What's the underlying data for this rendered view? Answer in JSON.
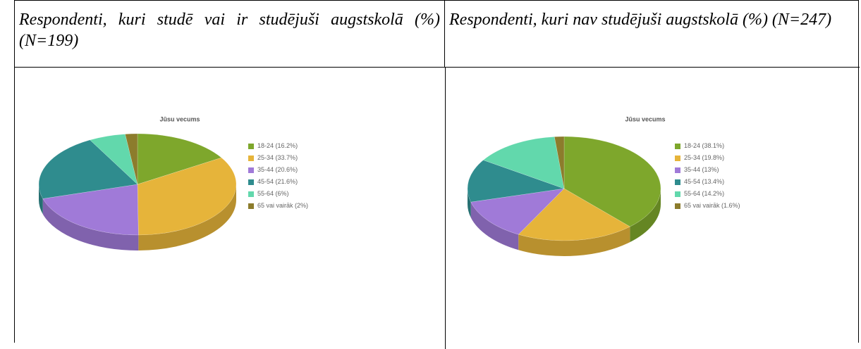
{
  "table": {
    "headers": [
      "Respondenti, kuri studē vai ir studējuši augstskolā (%) (N=199)",
      "Respondenti, kuri nav studējuši augstskolā (%) (N=247)"
    ]
  },
  "chart_data": [
    {
      "type": "pie",
      "title": "Jūsu vecums",
      "categories": [
        "18-24",
        "25-34",
        "35-44",
        "45-54",
        "55-64",
        "65 vai vairāk"
      ],
      "values": [
        16.2,
        33.7,
        20.6,
        21.6,
        6,
        2
      ],
      "value_labels": [
        "(16.2%)",
        "(33.7%)",
        "(20.6%)",
        "(21.6%)",
        "(6%)",
        "(2%)"
      ],
      "colors": [
        "#7ea72c",
        "#e6b43a",
        "#a07ad8",
        "#2f8c8e",
        "#62d8ac",
        "#8c7c2c"
      ]
    },
    {
      "type": "pie",
      "title": "Jūsu vecums",
      "categories": [
        "18-24",
        "25-34",
        "35-44",
        "45-54",
        "55-64",
        "65 vai vairāk"
      ],
      "values": [
        38.1,
        19.8,
        13,
        13.4,
        14.2,
        1.6
      ],
      "value_labels": [
        "(38.1%)",
        "(19.8%)",
        "(13%)",
        "(13.4%)",
        "(14.2%)",
        "(1.6%)"
      ],
      "colors": [
        "#7ea72c",
        "#e6b43a",
        "#a07ad8",
        "#2f8c8e",
        "#62d8ac",
        "#8c7c2c"
      ]
    }
  ]
}
